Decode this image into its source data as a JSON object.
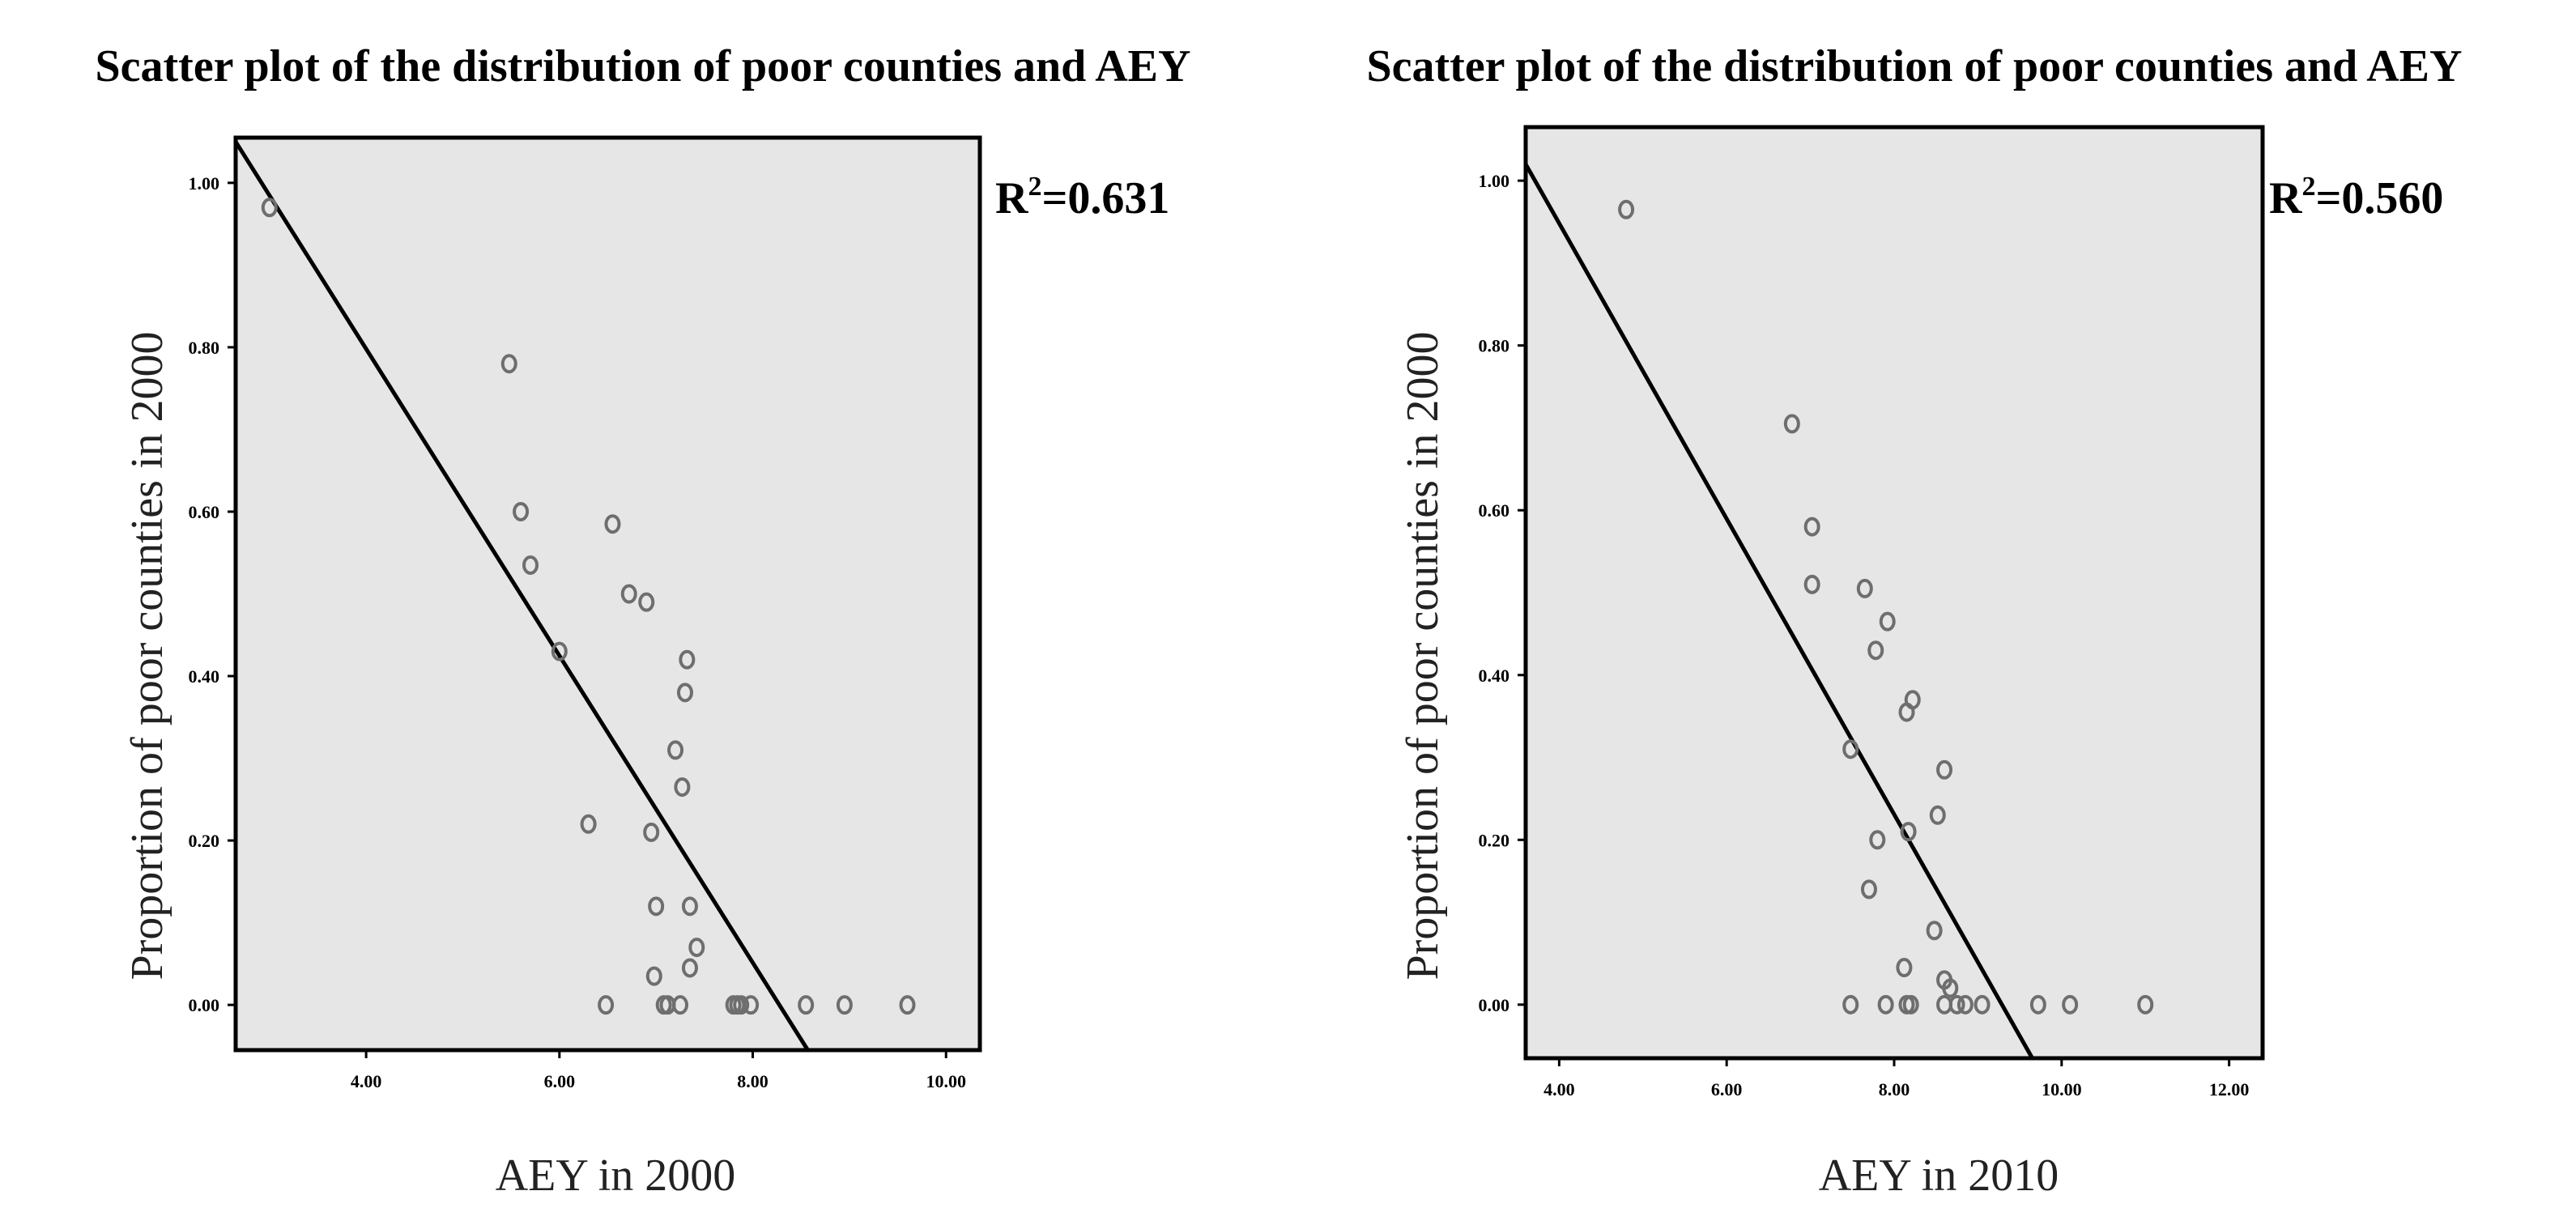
{
  "chart_data": [
    {
      "type": "scatter",
      "title": "Scatter plot of the distribution of poor counties and AEY",
      "xlabel": "AEY in 2000",
      "ylabel": "Proportion of poor counties in 2000",
      "annotation": {
        "r2_prefix": "R",
        "r2_sup": "2",
        "r2_value": "=0.631"
      },
      "xlim": [
        2.65,
        10.35
      ],
      "ylim": [
        -0.055,
        1.055
      ],
      "xticks": [
        {
          "value": 4,
          "label": "4.00"
        },
        {
          "value": 6,
          "label": "6.00"
        },
        {
          "value": 8,
          "label": "8.00"
        },
        {
          "value": 10,
          "label": "10.00"
        }
      ],
      "yticks": [
        {
          "value": 0,
          "label": "0.00"
        },
        {
          "value": 0.2,
          "label": "0.20"
        },
        {
          "value": 0.4,
          "label": "0.40"
        },
        {
          "value": 0.6,
          "label": "0.60"
        },
        {
          "value": 0.8,
          "label": "0.80"
        },
        {
          "value": 1.0,
          "label": "1.00"
        }
      ],
      "fit_line": {
        "x": [
          2.65,
          8.57
        ],
        "y": [
          1.05,
          -0.055
        ]
      },
      "grid": false,
      "legend": "none",
      "points": [
        {
          "x": 3.0,
          "y": 0.97
        },
        {
          "x": 5.48,
          "y": 0.78
        },
        {
          "x": 5.6,
          "y": 0.6
        },
        {
          "x": 5.7,
          "y": 0.535
        },
        {
          "x": 6.0,
          "y": 0.43
        },
        {
          "x": 6.55,
          "y": 0.585
        },
        {
          "x": 6.72,
          "y": 0.5
        },
        {
          "x": 6.9,
          "y": 0.49
        },
        {
          "x": 7.32,
          "y": 0.42
        },
        {
          "x": 7.3,
          "y": 0.38
        },
        {
          "x": 7.2,
          "y": 0.31
        },
        {
          "x": 7.27,
          "y": 0.265
        },
        {
          "x": 6.3,
          "y": 0.22
        },
        {
          "x": 6.95,
          "y": 0.21
        },
        {
          "x": 7.0,
          "y": 0.12
        },
        {
          "x": 7.35,
          "y": 0.12
        },
        {
          "x": 7.42,
          "y": 0.07
        },
        {
          "x": 7.35,
          "y": 0.045
        },
        {
          "x": 6.98,
          "y": 0.035
        },
        {
          "x": 6.48,
          "y": 0.0
        },
        {
          "x": 7.08,
          "y": 0.0
        },
        {
          "x": 7.12,
          "y": 0.0
        },
        {
          "x": 7.25,
          "y": 0.0
        },
        {
          "x": 7.8,
          "y": 0.0
        },
        {
          "x": 7.84,
          "y": 0.0
        },
        {
          "x": 7.88,
          "y": 0.0
        },
        {
          "x": 7.98,
          "y": 0.0
        },
        {
          "x": 8.55,
          "y": 0.0
        },
        {
          "x": 8.95,
          "y": 0.0
        },
        {
          "x": 9.6,
          "y": 0.0
        }
      ]
    },
    {
      "type": "scatter",
      "title": "Scatter plot of the distribution of poor counties and AEY",
      "xlabel": "AEY in 2010",
      "ylabel": "Proportion of poor counties in 2000",
      "annotation": {
        "r2_prefix": "R",
        "r2_sup": "2",
        "r2_value": "=0.560"
      },
      "xlim": [
        3.6,
        12.4
      ],
      "ylim": [
        -0.065,
        1.065
      ],
      "xticks": [
        {
          "value": 4,
          "label": "4.00"
        },
        {
          "value": 6,
          "label": "6.00"
        },
        {
          "value": 8,
          "label": "8.00"
        },
        {
          "value": 10,
          "label": "10.00"
        },
        {
          "value": 12,
          "label": "12.00"
        }
      ],
      "yticks": [
        {
          "value": 0,
          "label": "0.00"
        },
        {
          "value": 0.2,
          "label": "0.20"
        },
        {
          "value": 0.4,
          "label": "0.40"
        },
        {
          "value": 0.6,
          "label": "0.60"
        },
        {
          "value": 0.8,
          "label": "0.80"
        },
        {
          "value": 1.0,
          "label": "1.00"
        }
      ],
      "fit_line": {
        "x": [
          3.6,
          9.65
        ],
        "y": [
          1.02,
          -0.065
        ]
      },
      "grid": false,
      "legend": "none",
      "points": [
        {
          "x": 4.8,
          "y": 0.965
        },
        {
          "x": 6.78,
          "y": 0.705
        },
        {
          "x": 7.02,
          "y": 0.58
        },
        {
          "x": 7.02,
          "y": 0.51
        },
        {
          "x": 7.65,
          "y": 0.505
        },
        {
          "x": 7.92,
          "y": 0.465
        },
        {
          "x": 7.78,
          "y": 0.43
        },
        {
          "x": 8.22,
          "y": 0.37
        },
        {
          "x": 8.15,
          "y": 0.355
        },
        {
          "x": 7.48,
          "y": 0.31
        },
        {
          "x": 8.6,
          "y": 0.285
        },
        {
          "x": 8.52,
          "y": 0.23
        },
        {
          "x": 8.17,
          "y": 0.21
        },
        {
          "x": 7.8,
          "y": 0.2
        },
        {
          "x": 7.7,
          "y": 0.14
        },
        {
          "x": 8.48,
          "y": 0.09
        },
        {
          "x": 8.12,
          "y": 0.045
        },
        {
          "x": 8.6,
          "y": 0.03
        },
        {
          "x": 8.67,
          "y": 0.02
        },
        {
          "x": 7.48,
          "y": 0.0
        },
        {
          "x": 7.9,
          "y": 0.0
        },
        {
          "x": 8.15,
          "y": 0.0
        },
        {
          "x": 8.2,
          "y": 0.0
        },
        {
          "x": 8.6,
          "y": 0.0
        },
        {
          "x": 8.75,
          "y": 0.0
        },
        {
          "x": 8.85,
          "y": 0.0
        },
        {
          "x": 9.05,
          "y": 0.0
        },
        {
          "x": 9.72,
          "y": 0.0
        },
        {
          "x": 10.1,
          "y": 0.0
        },
        {
          "x": 11.0,
          "y": 0.0
        }
      ]
    }
  ]
}
